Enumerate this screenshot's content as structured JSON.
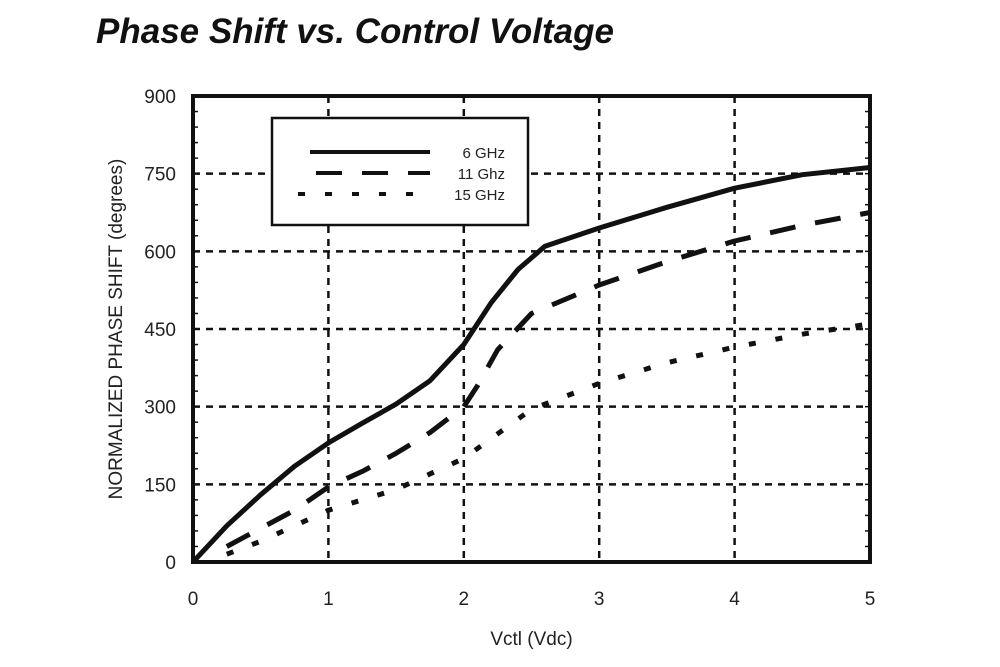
{
  "chart_data": {
    "type": "line",
    "title": "Phase Shift vs. Control Voltage",
    "xlabel": "Vctl (Vdc)",
    "ylabel": "NORMALIZED PHASE SHIFT (degrees)",
    "xlim": [
      0,
      5
    ],
    "ylim": [
      0,
      900
    ],
    "xticks": [
      "0",
      "1",
      "2",
      "3",
      "4",
      "5"
    ],
    "yticks": [
      "0",
      "150",
      "300",
      "450",
      "600",
      "750",
      "900"
    ],
    "grid": true,
    "legend_position": "top-left",
    "series": [
      {
        "name": "6 GHz",
        "style": "solid",
        "x": [
          0,
          0.25,
          0.5,
          0.75,
          1,
          1.25,
          1.5,
          1.75,
          2,
          2.2,
          2.4,
          2.6,
          3,
          3.5,
          4,
          4.5,
          5
        ],
        "y": [
          0,
          70,
          130,
          185,
          230,
          268,
          305,
          350,
          420,
          500,
          565,
          610,
          645,
          685,
          722,
          748,
          762
        ]
      },
      {
        "name": "11 Ghz",
        "style": "dashed",
        "x": [
          0.25,
          0.5,
          0.75,
          1,
          1.25,
          1.5,
          1.75,
          2,
          2.1,
          2.25,
          2.5,
          3,
          3.5,
          4,
          4.5,
          5
        ],
        "y": [
          30,
          65,
          100,
          145,
          175,
          210,
          250,
          300,
          340,
          410,
          480,
          535,
          580,
          620,
          650,
          675
        ]
      },
      {
        "name": "15 GHz",
        "style": "dotted",
        "x": [
          0.25,
          0.5,
          0.75,
          1,
          1.5,
          2,
          2.5,
          3,
          3.5,
          4,
          4.5,
          5
        ],
        "y": [
          15,
          40,
          70,
          100,
          140,
          200,
          295,
          345,
          385,
          415,
          440,
          460
        ]
      }
    ]
  }
}
